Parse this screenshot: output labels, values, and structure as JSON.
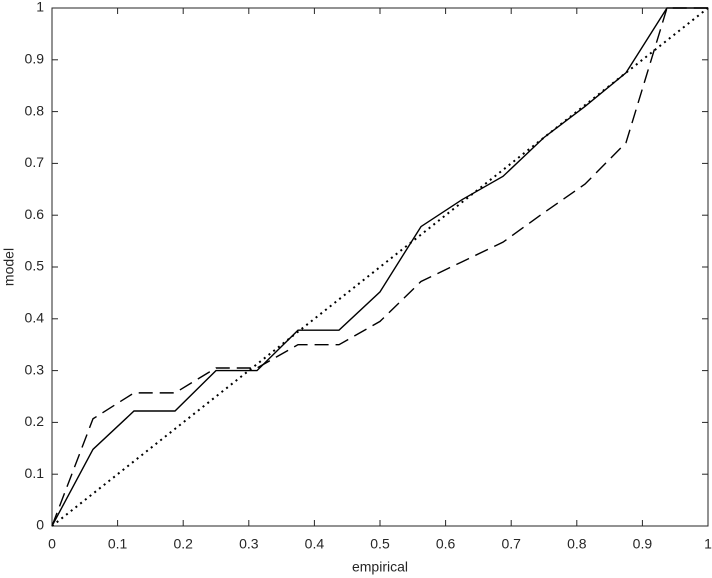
{
  "chart_data": {
    "type": "line",
    "xlabel": "empirical",
    "ylabel": "model",
    "x": [
      0,
      0.0625,
      0.125,
      0.1875,
      0.25,
      0.3125,
      0.375,
      0.4375,
      0.5,
      0.5625,
      0.625,
      0.6875,
      0.75,
      0.8125,
      0.875,
      0.9375,
      1
    ],
    "series": [
      {
        "color": "#000000",
        "style": "solid",
        "values": [
          0,
          0.148,
          0.222,
          0.222,
          0.3,
          0.3,
          0.378,
          0.378,
          0.452,
          0.578,
          0.63,
          0.675,
          0.75,
          0.81,
          0.875,
          1,
          1
        ]
      },
      {
        "color": "#000000",
        "style": "dashed",
        "values": [
          0,
          0.207,
          0.257,
          0.257,
          0.305,
          0.305,
          0.35,
          0.35,
          0.395,
          0.472,
          0.51,
          0.548,
          0.605,
          0.66,
          0.74,
          1,
          1
        ]
      },
      {
        "color": "#000000",
        "style": "dotted",
        "values": [
          0,
          0.0625,
          0.125,
          0.1875,
          0.25,
          0.3125,
          0.375,
          0.4375,
          0.5,
          0.5625,
          0.625,
          0.6875,
          0.75,
          0.8125,
          0.875,
          0.9375,
          1
        ]
      }
    ],
    "xlim": [
      0,
      1
    ],
    "ylim": [
      0,
      1
    ],
    "xticks": [
      0,
      0.1,
      0.2,
      0.3,
      0.4,
      0.5,
      0.6,
      0.7,
      0.8,
      0.9,
      1
    ],
    "yticks": [
      0,
      0.1,
      0.2,
      0.3,
      0.4,
      0.5,
      0.6,
      0.7,
      0.8,
      0.9,
      1
    ],
    "grid": false
  }
}
